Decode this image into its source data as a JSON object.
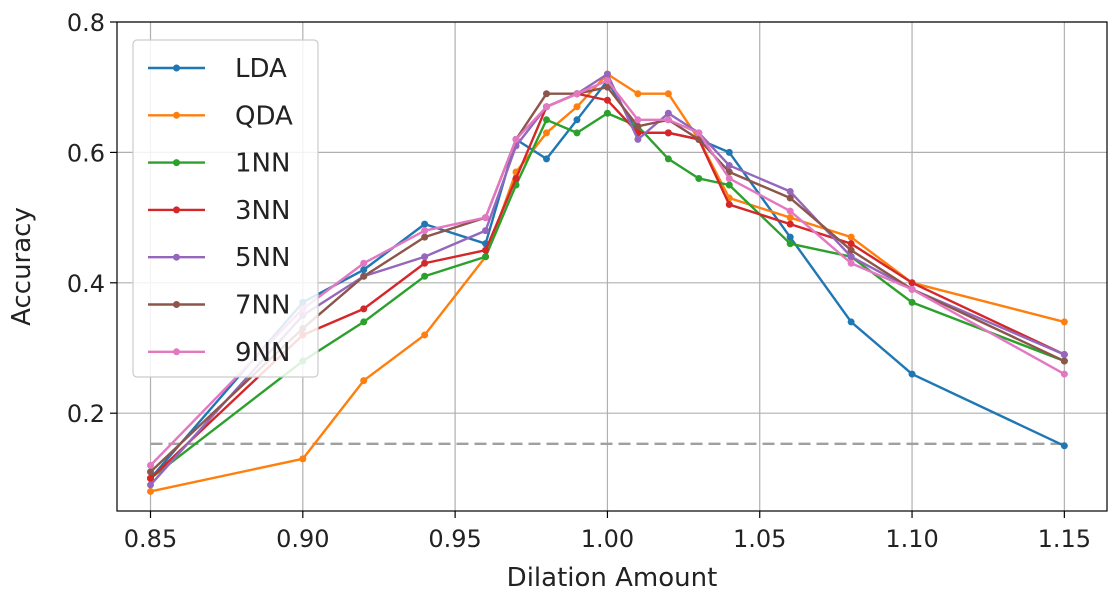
{
  "chart_data": {
    "type": "line",
    "title": "",
    "xlabel": "Dilation Amount",
    "ylabel": "Accuracy",
    "xlim": [
      0.839,
      1.164
    ],
    "ylim": [
      0.05,
      0.8
    ],
    "xticks": [
      0.85,
      0.9,
      0.95,
      1.0,
      1.05,
      1.1,
      1.15
    ],
    "xtick_labels": [
      "0.85",
      "0.90",
      "0.95",
      "1.00",
      "1.05",
      "1.10",
      "1.15"
    ],
    "yticks": [
      0.2,
      0.4,
      0.6,
      0.8
    ],
    "ytick_labels": [
      "0.2",
      "0.4",
      "0.6",
      "0.8"
    ],
    "grid": true,
    "legend_position": "upper-left",
    "baseline": {
      "y": 0.153,
      "x_range": [
        0.85,
        1.15
      ],
      "color": "#a0a0a0",
      "style": "dashed"
    },
    "x": [
      0.85,
      0.9,
      0.92,
      0.94,
      0.96,
      0.97,
      0.98,
      0.99,
      1.0,
      1.01,
      1.02,
      1.03,
      1.04,
      1.06,
      1.08,
      1.1,
      1.15
    ],
    "series": [
      {
        "name": "LDA",
        "color": "#1f77b4",
        "values": [
          0.1,
          0.37,
          0.42,
          0.49,
          0.46,
          0.62,
          0.59,
          0.65,
          0.71,
          0.63,
          0.63,
          0.62,
          0.6,
          0.47,
          0.34,
          0.26,
          0.15
        ]
      },
      {
        "name": "QDA",
        "color": "#ff7f0e",
        "values": [
          0.08,
          0.13,
          0.25,
          0.32,
          0.44,
          0.57,
          0.63,
          0.67,
          0.72,
          0.69,
          0.69,
          0.62,
          0.53,
          0.5,
          0.47,
          0.4,
          0.34
        ]
      },
      {
        "name": "1NN",
        "color": "#2ca02c",
        "values": [
          0.1,
          0.28,
          0.34,
          0.41,
          0.44,
          0.55,
          0.65,
          0.63,
          0.66,
          0.64,
          0.59,
          0.56,
          0.55,
          0.46,
          0.44,
          0.37,
          0.28
        ]
      },
      {
        "name": "3NN",
        "color": "#d62728",
        "values": [
          0.1,
          0.32,
          0.36,
          0.43,
          0.45,
          0.56,
          0.67,
          0.69,
          0.68,
          0.63,
          0.63,
          0.62,
          0.52,
          0.49,
          0.46,
          0.4,
          0.29
        ]
      },
      {
        "name": "5NN",
        "color": "#9467bd",
        "values": [
          0.09,
          0.35,
          0.41,
          0.44,
          0.48,
          0.61,
          0.67,
          0.69,
          0.72,
          0.62,
          0.66,
          0.63,
          0.58,
          0.54,
          0.44,
          0.39,
          0.29
        ]
      },
      {
        "name": "7NN",
        "color": "#8c564b",
        "values": [
          0.11,
          0.33,
          0.41,
          0.47,
          0.5,
          0.62,
          0.69,
          0.69,
          0.7,
          0.64,
          0.65,
          0.62,
          0.57,
          0.53,
          0.45,
          0.39,
          0.28
        ]
      },
      {
        "name": "9NN",
        "color": "#e377c2",
        "values": [
          0.12,
          0.36,
          0.43,
          0.48,
          0.5,
          0.62,
          0.67,
          0.69,
          0.71,
          0.65,
          0.65,
          0.63,
          0.56,
          0.51,
          0.43,
          0.39,
          0.26
        ]
      }
    ]
  }
}
